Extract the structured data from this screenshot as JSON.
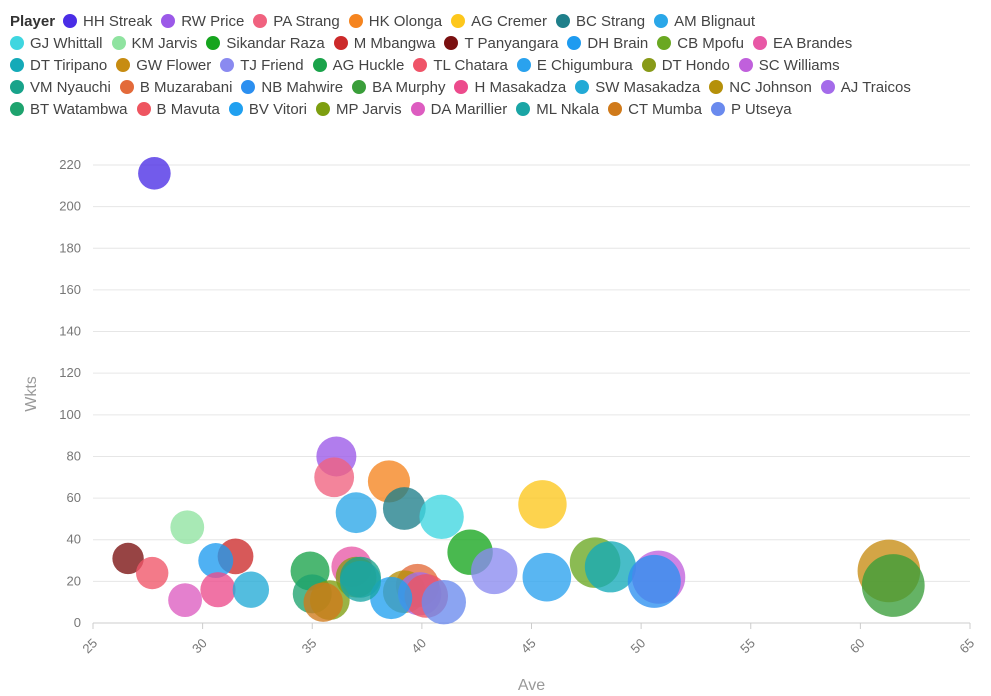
{
  "chart_data": {
    "type": "scatter",
    "legend_title": "Player",
    "xlabel": "Ave",
    "ylabel": "Wkts",
    "xlim": [
      25,
      65
    ],
    "ylim": [
      0,
      220
    ],
    "xticks": [
      25,
      30,
      35,
      40,
      45,
      50,
      55,
      60,
      65
    ],
    "yticks": [
      0,
      20,
      40,
      60,
      80,
      100,
      120,
      140,
      160,
      180,
      200,
      220
    ],
    "grid": true,
    "legend_position": "top",
    "series": [
      {
        "name": "HH Streak",
        "color": "#4a2de6",
        "x": 27.8,
        "y": 216
      },
      {
        "name": "RW Price",
        "color": "#9b59e8",
        "x": 36.1,
        "y": 80
      },
      {
        "name": "PA Strang",
        "color": "#f0627f",
        "x": 36.0,
        "y": 70
      },
      {
        "name": "HK Olonga",
        "color": "#f5841f",
        "x": 38.5,
        "y": 68
      },
      {
        "name": "AG Cremer",
        "color": "#fdc71c",
        "x": 45.5,
        "y": 57
      },
      {
        "name": "BC Strang",
        "color": "#1f7f8a",
        "x": 39.2,
        "y": 55
      },
      {
        "name": "AM Blignaut",
        "color": "#2aa7e8",
        "x": 37.0,
        "y": 53
      },
      {
        "name": "GJ Whittall",
        "color": "#3fd6e0",
        "x": 40.9,
        "y": 51
      },
      {
        "name": "KM Jarvis",
        "color": "#8fe3a0",
        "x": 29.3,
        "y": 46
      },
      {
        "name": "Sikandar Raza",
        "color": "#16a51e",
        "x": 42.2,
        "y": 34
      },
      {
        "name": "M Mbangwa",
        "color": "#cc2a2a",
        "x": 31.5,
        "y": 32
      },
      {
        "name": "T Panyangara",
        "color": "#7a1010",
        "x": 26.6,
        "y": 31
      },
      {
        "name": "DH Brain",
        "color": "#1e9bf0",
        "x": 30.6,
        "y": 30
      },
      {
        "name": "CB Mpofu",
        "color": "#6aa822",
        "x": 47.9,
        "y": 29
      },
      {
        "name": "EA Brandes",
        "color": "#e858a6",
        "x": 36.8,
        "y": 27
      },
      {
        "name": "DT Tiripano",
        "color": "#14aab8",
        "x": 48.6,
        "y": 27
      },
      {
        "name": "GW Flower",
        "color": "#c78c12",
        "x": 61.3,
        "y": 25
      },
      {
        "name": "TJ Friend",
        "color": "#8a8af0",
        "x": 43.3,
        "y": 25
      },
      {
        "name": "AG Huckle",
        "color": "#1aa34a",
        "x": 34.9,
        "y": 25
      },
      {
        "name": "TL Chatara",
        "color": "#ef5468",
        "x": 27.7,
        "y": 24
      },
      {
        "name": "E Chigumbura",
        "color": "#2aa2ee",
        "x": 45.7,
        "y": 22
      },
      {
        "name": "DT Hondo",
        "color": "#889a18",
        "x": 37.0,
        "y": 22
      },
      {
        "name": "SC Williams",
        "color": "#c060dc",
        "x": 50.8,
        "y": 22
      },
      {
        "name": "VM Nyauchi",
        "color": "#18a38a",
        "x": 37.2,
        "y": 22
      },
      {
        "name": "B Muzarabani",
        "color": "#e36a3a",
        "x": 39.8,
        "y": 18
      },
      {
        "name": "NB Mahwire",
        "color": "#2b8ff0",
        "x": 50.6,
        "y": 20
      },
      {
        "name": "BA Murphy",
        "color": "#3a9e3a",
        "x": 61.5,
        "y": 18
      },
      {
        "name": "H Masakadza",
        "color": "#ec4b8c",
        "x": 30.7,
        "y": 16
      },
      {
        "name": "SW Masakadza",
        "color": "#22aad6",
        "x": 32.2,
        "y": 16
      },
      {
        "name": "NC Johnson",
        "color": "#b5900a",
        "x": 39.2,
        "y": 15
      },
      {
        "name": "AJ Traicos",
        "color": "#a46bea",
        "x": 39.9,
        "y": 14
      },
      {
        "name": "BT Watambwa",
        "color": "#1ea36e",
        "x": 35.0,
        "y": 14
      },
      {
        "name": "B Mavuta",
        "color": "#ee5560",
        "x": 40.2,
        "y": 13
      },
      {
        "name": "BV Vitori",
        "color": "#20a0f0",
        "x": 38.6,
        "y": 12
      },
      {
        "name": "MP Jarvis",
        "color": "#7d9e10",
        "x": 35.8,
        "y": 11
      },
      {
        "name": "DA Marillier",
        "color": "#dd5cc0",
        "x": 29.2,
        "y": 11
      },
      {
        "name": "ML Nkala",
        "color": "#1aa5a5",
        "x": 37.2,
        "y": 20
      },
      {
        "name": "CT Mumba",
        "color": "#d07a1a",
        "x": 35.5,
        "y": 10
      },
      {
        "name": "P Utseya",
        "color": "#6a8aee",
        "x": 41.0,
        "y": 10
      }
    ]
  }
}
